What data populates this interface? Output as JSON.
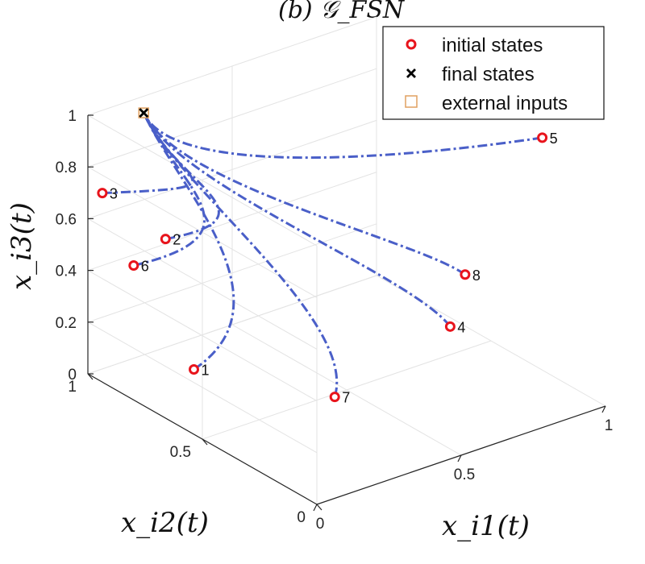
{
  "chart_data": {
    "type": "line3d",
    "title": "(b) 𝒢_FSN",
    "xlabel": "x_i1(t)",
    "ylabel": "x_i2(t)",
    "zlabel": "x_i3(t)",
    "xlim": [
      0,
      1
    ],
    "ylim": [
      0,
      1
    ],
    "zlim": [
      0,
      1
    ],
    "x_ticks": [
      "0",
      "0.5",
      "1"
    ],
    "y_ticks": [
      "0",
      "0.5",
      "1"
    ],
    "z_ticks": [
      "0",
      "0.2",
      "0.4",
      "0.6",
      "0.8",
      "1"
    ],
    "grid": true,
    "legend": {
      "placement": "top-right",
      "entries": [
        {
          "label": "initial states",
          "marker": "circle",
          "color": "#e8141c"
        },
        {
          "label": "final states",
          "marker": "x",
          "color": "#000000"
        },
        {
          "label": "external inputs",
          "marker": "square",
          "color": "#e0a060"
        }
      ]
    },
    "line_color": "#4a5fc8",
    "final_state": {
      "x": 0.13,
      "y": 0.92,
      "z": 1.0
    },
    "external_input": {
      "x": 0.13,
      "y": 0.92,
      "z": 1.0
    },
    "agents": [
      {
        "id": "1",
        "initial": {
          "x": 0.05,
          "y": 0.6,
          "z": 0.2
        }
      },
      {
        "id": "2",
        "initial": {
          "x": 0.15,
          "y": 0.85,
          "z": 0.54
        }
      },
      {
        "id": "3",
        "initial": {
          "x": 0.05,
          "y": 1.0,
          "z": 0.68
        }
      },
      {
        "id": "4",
        "initial": {
          "x": 0.7,
          "y": 0.3,
          "z": 0.27
        }
      },
      {
        "id": "5",
        "initial": {
          "x": 0.9,
          "y": 0.15,
          "z": 1.0
        }
      },
      {
        "id": "6",
        "initial": {
          "x": 0.0,
          "y": 0.8,
          "z": 0.52
        }
      },
      {
        "id": "7",
        "initial": {
          "x": 0.3,
          "y": 0.3,
          "z": 0.15
        }
      },
      {
        "id": "8",
        "initial": {
          "x": 0.95,
          "y": 0.55,
          "z": 0.25
        }
      }
    ]
  }
}
